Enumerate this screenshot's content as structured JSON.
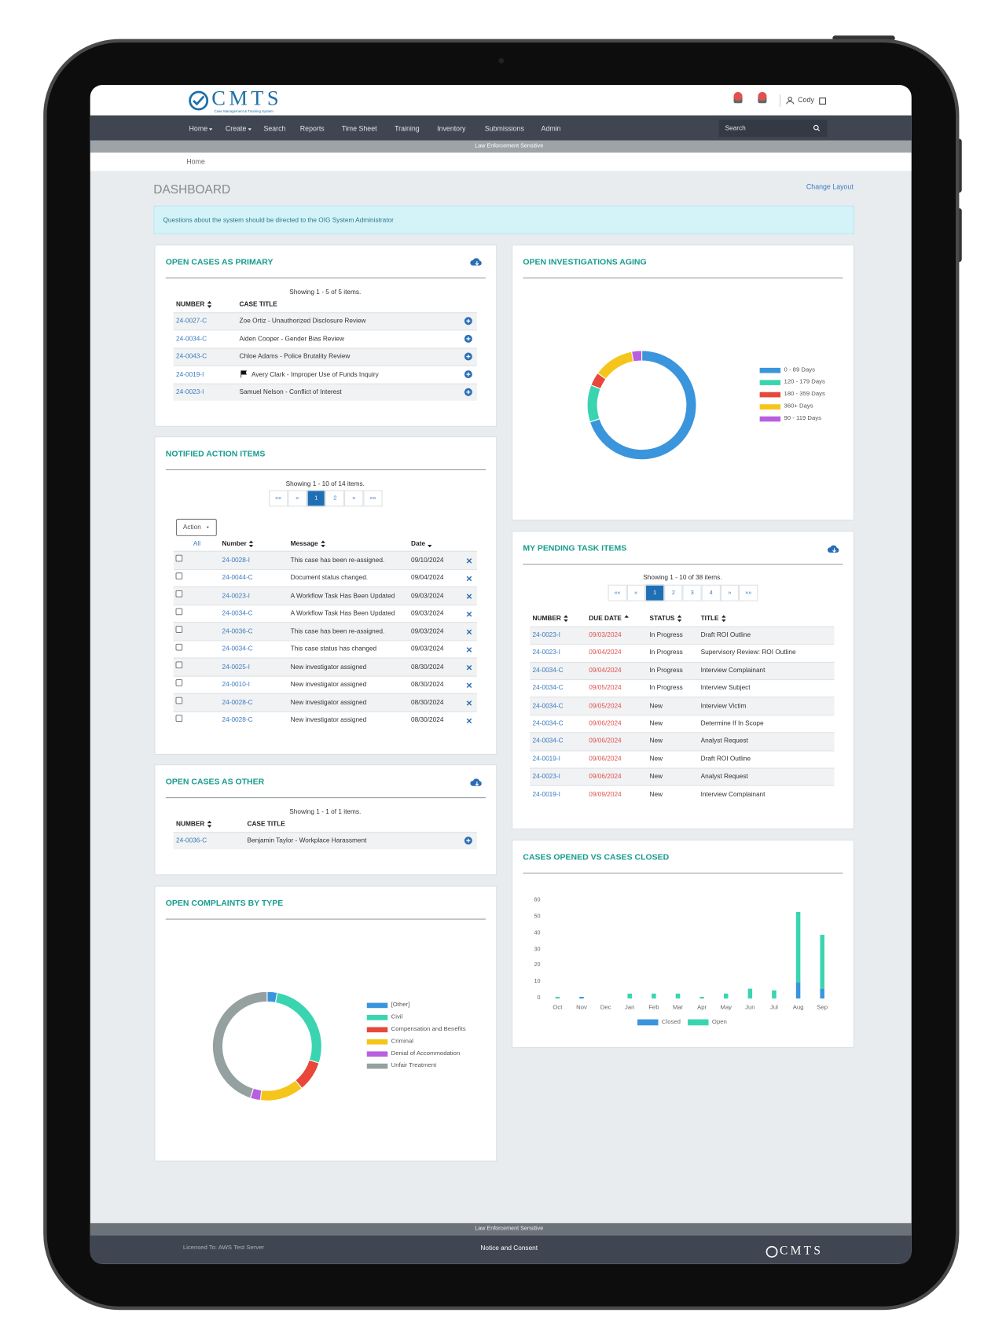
{
  "header": {
    "logo": "CMTS",
    "logo_subtitle": "Case Management & Tracking System",
    "user": "Cody"
  },
  "nav": [
    "Home",
    "Create",
    "Search",
    "Reports",
    "Time Sheet",
    "Training",
    "Inventory",
    "Submissions",
    "Admin"
  ],
  "search_placeholder": "Search",
  "banner": "Law Enforcement Sensitive",
  "breadcrumb": "Home",
  "page_title": "DASHBOARD",
  "change_layout": "Change Layout",
  "alert": "Questions about the system should be directed to the OIG System Administrator",
  "open_cases_primary": {
    "title": "OPEN CASES AS PRIMARY",
    "showing": "Showing 1 - 5 of 5 items.",
    "columns": [
      "NUMBER",
      "CASE TITLE"
    ],
    "rows": [
      [
        "24-0027-C",
        "Zoe Ortiz - Unauthorized Disclosure Review"
      ],
      [
        "24-0034-C",
        "Aiden Cooper - Gender Bias Review"
      ],
      [
        "24-0043-C",
        "Chloe Adams - Police Brutality Review"
      ],
      [
        "24-0019-I",
        "Avery Clark - Improper Use of Funds Inquiry"
      ],
      [
        "24-0023-I",
        "Samuel Nelson - Conflict of Interest"
      ]
    ]
  },
  "notified_action_items": {
    "title": "NOTIFIED ACTION ITEMS",
    "showing": "Showing 1 - 10 of 14 items.",
    "pages": [
      "««",
      "«",
      "1",
      "2",
      "»",
      "»»"
    ],
    "action": "Action",
    "all": "All",
    "columns": [
      "Number",
      "Message",
      "Date"
    ],
    "rows": [
      [
        "24-0028-I",
        "This case has been re-assigned.",
        "09/10/2024"
      ],
      [
        "24-0044-C",
        "Document status changed.",
        "09/04/2024"
      ],
      [
        "24-0023-I",
        "A Workflow Task Has Been Updated",
        "09/03/2024"
      ],
      [
        "24-0034-C",
        "A Workflow Task Has Been Updated",
        "09/03/2024"
      ],
      [
        "24-0036-C",
        "This case has been re-assigned.",
        "09/03/2024"
      ],
      [
        "24-0034-C",
        "This case status has changed",
        "09/03/2024"
      ],
      [
        "24-0025-I",
        "New investigator assigned",
        "08/30/2024"
      ],
      [
        "24-0010-I",
        "New investigator assigned",
        "08/30/2024"
      ],
      [
        "24-0028-C",
        "New investigator assigned",
        "08/30/2024"
      ],
      [
        "24-0028-C",
        "New investigator assigned",
        "08/30/2024"
      ]
    ]
  },
  "open_cases_other": {
    "title": "OPEN CASES AS OTHER",
    "showing": "Showing 1 - 1 of 1 items.",
    "columns": [
      "NUMBER",
      "CASE TITLE"
    ],
    "rows": [
      [
        "24-0036-C",
        "Benjamin Taylor - Workplace Harassment"
      ]
    ]
  },
  "pending_tasks": {
    "title": "MY PENDING TASK ITEMS",
    "showing": "Showing 1 - 10 of 38 items.",
    "pages": [
      "««",
      "«",
      "1",
      "2",
      "3",
      "4",
      "»",
      "»»"
    ],
    "columns": [
      "NUMBER",
      "DUE DATE",
      "STATUS",
      "TITLE"
    ],
    "rows": [
      [
        "24-0023-I",
        "09/03/2024",
        "In Progress",
        "Draft ROI Outline"
      ],
      [
        "24-0023-I",
        "09/04/2024",
        "In Progress",
        "Supervisory Review: ROI Outline"
      ],
      [
        "24-0034-C",
        "09/04/2024",
        "In Progress",
        "Interview Complainant"
      ],
      [
        "24-0034-C",
        "09/05/2024",
        "In Progress",
        "Interview Subject"
      ],
      [
        "24-0034-C",
        "09/05/2024",
        "New",
        "Interview Victim"
      ],
      [
        "24-0034-C",
        "09/06/2024",
        "New",
        "Determine If In Scope"
      ],
      [
        "24-0034-C",
        "09/06/2024",
        "New",
        "Analyst Request"
      ],
      [
        "24-0019-I",
        "09/06/2024",
        "New",
        "Draft ROI Outline"
      ],
      [
        "24-0023-I",
        "09/06/2024",
        "New",
        "Analyst Request"
      ],
      [
        "24-0019-I",
        "09/09/2024",
        "New",
        "Interview Complainant"
      ]
    ]
  },
  "footer": {
    "banner": "Law Enforcement Sensitive",
    "license": "Licensed To: AWS Test Server",
    "notice": "Notice and Consent",
    "logo": "CMTS"
  },
  "chart_data": [
    {
      "type": "pie",
      "title": "OPEN INVESTIGATIONS AGING",
      "donut": true,
      "categories": [
        "0 - 89 Days",
        "120 - 179 Days",
        "180 - 359 Days",
        "360+ Days",
        "90 - 119 Days"
      ],
      "values": [
        70,
        11,
        4,
        12,
        3
      ],
      "colors": [
        "#3b95dc",
        "#3ad5b0",
        "#e8473a",
        "#f5c51b",
        "#b85fe0"
      ]
    },
    {
      "type": "bar",
      "title": "CASES OPENED VS CASES CLOSED",
      "stacked": true,
      "categories": [
        "Oct",
        "Nov",
        "Dec",
        "Jan",
        "Feb",
        "Mar",
        "Apr",
        "May",
        "Jun",
        "Jul",
        "Aug",
        "Sep"
      ],
      "series": [
        {
          "name": "Closed",
          "color": "#3b95dc",
          "values": [
            0,
            1,
            0,
            0,
            0,
            0,
            0,
            0,
            0,
            0,
            10,
            6
          ]
        },
        {
          "name": "Open",
          "color": "#3ad5b0",
          "values": [
            1,
            0,
            0,
            3,
            3,
            3,
            1,
            3,
            6,
            5,
            43,
            33
          ]
        }
      ],
      "ylim": [
        0,
        60
      ],
      "yticks": [
        0,
        10,
        20,
        30,
        40,
        50,
        60
      ]
    },
    {
      "type": "pie",
      "title": "OPEN COMPLAINTS BY TYPE",
      "donut": true,
      "categories": [
        "[Other]",
        "Civil",
        "Compensation and Benefits",
        "Criminal",
        "Denial of Accommodation",
        "Unfair Treatment"
      ],
      "values": [
        3,
        27,
        9,
        13,
        3,
        45
      ],
      "colors": [
        "#3b95dc",
        "#3ad5b0",
        "#e8473a",
        "#f5c51b",
        "#b85fe0",
        "#95a0a0"
      ]
    }
  ]
}
